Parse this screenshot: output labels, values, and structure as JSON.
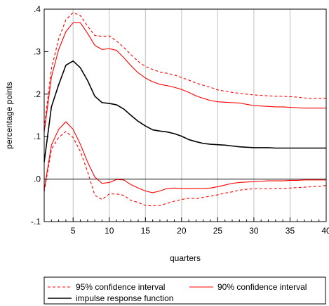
{
  "chart_data": {
    "type": "line",
    "xlabel": "quarters",
    "ylabel": "percentage points",
    "xlim": [
      1,
      40
    ],
    "ylim": [
      -0.1,
      0.4
    ],
    "x_ticks": [
      5,
      10,
      15,
      20,
      25,
      30,
      35,
      40
    ],
    "x_tick_labels": [
      "5",
      "10",
      "15",
      "20",
      "25",
      "30",
      "35",
      "40"
    ],
    "y_ticks": [
      -0.1,
      0.0,
      0.1,
      0.2,
      0.3,
      0.4
    ],
    "y_tick_labels": [
      "-.1",
      ".0",
      ".1",
      ".2",
      ".3",
      ".4"
    ],
    "grid": "vertical",
    "zero_line": true,
    "legend_position": "bottom",
    "colors": {
      "ci": "#ff0000",
      "irf": "#000000",
      "grid": "#c0c0c0",
      "frame": "#000000"
    },
    "legend": [
      {
        "key": "ci95",
        "label": "95% confidence interval"
      },
      {
        "key": "ci90",
        "label": "90% confidence interval"
      },
      {
        "key": "irf",
        "label": "impulse response function"
      }
    ],
    "x": [
      1,
      2,
      3,
      4,
      5,
      6,
      7,
      8,
      9,
      10,
      11,
      12,
      13,
      14,
      15,
      16,
      17,
      18,
      19,
      20,
      21,
      22,
      23,
      24,
      25,
      26,
      27,
      28,
      29,
      30,
      31,
      32,
      33,
      34,
      35,
      36,
      37,
      38,
      39,
      40
    ],
    "series": [
      {
        "name": "95% confidence interval",
        "key": "ci95_upper",
        "style": "dashed",
        "values": [
          0.12,
          0.26,
          0.33,
          0.375,
          0.392,
          0.385,
          0.36,
          0.338,
          0.336,
          0.337,
          0.325,
          0.31,
          0.293,
          0.277,
          0.265,
          0.258,
          0.252,
          0.249,
          0.245,
          0.239,
          0.233,
          0.226,
          0.221,
          0.216,
          0.21,
          0.207,
          0.204,
          0.202,
          0.2,
          0.198,
          0.197,
          0.196,
          0.195,
          0.195,
          0.194,
          0.193,
          0.191,
          0.19,
          0.19,
          0.19
        ]
      },
      {
        "name": "90% confidence interval",
        "key": "ci90_upper",
        "style": "solid",
        "values": [
          0.11,
          0.24,
          0.305,
          0.347,
          0.368,
          0.368,
          0.343,
          0.315,
          0.305,
          0.307,
          0.303,
          0.286,
          0.267,
          0.25,
          0.238,
          0.229,
          0.223,
          0.22,
          0.216,
          0.211,
          0.204,
          0.196,
          0.19,
          0.185,
          0.182,
          0.181,
          0.18,
          0.179,
          0.176,
          0.173,
          0.172,
          0.171,
          0.17,
          0.17,
          0.169,
          0.168,
          0.167,
          0.167,
          0.167,
          0.167
        ]
      },
      {
        "name": "impulse response function",
        "key": "irf",
        "style": "solid",
        "values": [
          0.04,
          0.17,
          0.222,
          0.268,
          0.278,
          0.262,
          0.232,
          0.195,
          0.18,
          0.178,
          0.175,
          0.165,
          0.15,
          0.136,
          0.125,
          0.116,
          0.113,
          0.111,
          0.107,
          0.101,
          0.093,
          0.088,
          0.084,
          0.082,
          0.081,
          0.08,
          0.078,
          0.076,
          0.075,
          0.074,
          0.074,
          0.074,
          0.073,
          0.073,
          0.073,
          0.073,
          0.073,
          0.073,
          0.073,
          0.073
        ]
      },
      {
        "name": "90% confidence interval",
        "key": "ci90_lower",
        "style": "solid",
        "values": [
          -0.025,
          0.08,
          0.117,
          0.135,
          0.117,
          0.082,
          0.04,
          0.005,
          -0.01,
          -0.008,
          -0.001,
          -0.002,
          -0.013,
          -0.021,
          -0.028,
          -0.032,
          -0.028,
          -0.022,
          -0.021,
          -0.022,
          -0.022,
          -0.022,
          -0.022,
          -0.021,
          -0.018,
          -0.014,
          -0.01,
          -0.008,
          -0.007,
          -0.006,
          -0.005,
          -0.004,
          -0.004,
          -0.004,
          -0.003,
          -0.003,
          -0.002,
          -0.002,
          -0.002,
          -0.002
        ]
      },
      {
        "name": "95% confidence interval",
        "key": "ci95_lower",
        "style": "dashed",
        "values": [
          -0.03,
          0.07,
          0.098,
          0.112,
          0.098,
          0.065,
          0.018,
          -0.038,
          -0.048,
          -0.035,
          -0.035,
          -0.038,
          -0.05,
          -0.055,
          -0.062,
          -0.063,
          -0.062,
          -0.057,
          -0.052,
          -0.048,
          -0.045,
          -0.046,
          -0.043,
          -0.04,
          -0.037,
          -0.033,
          -0.03,
          -0.026,
          -0.024,
          -0.023,
          -0.023,
          -0.023,
          -0.022,
          -0.022,
          -0.021,
          -0.02,
          -0.019,
          -0.018,
          -0.017,
          -0.015
        ]
      }
    ]
  }
}
